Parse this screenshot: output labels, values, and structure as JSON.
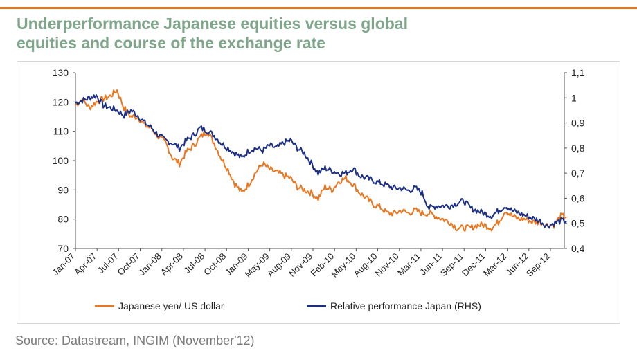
{
  "header": {
    "title_line1": "Underperformance Japanese equities versus global",
    "title_line2": "equities and course of the exchange rate",
    "accent_color": "#e87722",
    "title_color": "#7fa68a"
  },
  "footer": {
    "source": "Source: Datastream, INGIM (November'12)"
  },
  "chart_data": {
    "type": "line",
    "title": "",
    "x_tick_labels": [
      "Jan-07",
      "Apr-07",
      "Jul-07",
      "Oct-07",
      "Jan-08",
      "Apr-08",
      "Jul-08",
      "Oct-08",
      "Jan-09",
      "May-09",
      "Aug-09",
      "Nov-09",
      "Feb-10",
      "May-10",
      "Aug-10",
      "Nov-10",
      "Mar-11",
      "Jun-11",
      "Sep-11",
      "Dec-11",
      "Mar-12",
      "Jun-12",
      "Sep-12"
    ],
    "y_left": {
      "range": [
        70,
        130
      ],
      "ticks": [
        "130",
        "120",
        "110",
        "100",
        "90",
        "80",
        "70"
      ]
    },
    "y_right": {
      "range": [
        0.4,
        1.1
      ],
      "ticks": [
        "1,1",
        "1",
        "0,9",
        "0,8",
        "0,7",
        "0,6",
        "0,5",
        "0,4"
      ]
    },
    "legend_position": "bottom",
    "grid": false,
    "series": [
      {
        "name": "Japanese yen/ US dollar",
        "axis": "left",
        "color": "#e87722",
        "x": [
          "2007-01",
          "2007-02",
          "2007-03",
          "2007-04",
          "2007-05",
          "2007-06",
          "2007-07",
          "2007-08",
          "2007-09",
          "2007-10",
          "2007-11",
          "2007-12",
          "2008-01",
          "2008-02",
          "2008-03",
          "2008-04",
          "2008-05",
          "2008-06",
          "2008-07",
          "2008-08",
          "2008-09",
          "2008-10",
          "2008-11",
          "2008-12",
          "2009-01",
          "2009-02",
          "2009-03",
          "2009-04",
          "2009-05",
          "2009-06",
          "2009-07",
          "2009-08",
          "2009-09",
          "2009-10",
          "2009-11",
          "2009-12",
          "2010-01",
          "2010-02",
          "2010-03",
          "2010-04",
          "2010-05",
          "2010-06",
          "2010-07",
          "2010-08",
          "2010-09",
          "2010-10",
          "2010-11",
          "2010-12",
          "2011-01",
          "2011-02",
          "2011-03",
          "2011-04",
          "2011-05",
          "2011-06",
          "2011-07",
          "2011-08",
          "2011-09",
          "2011-10",
          "2011-11",
          "2011-12",
          "2012-01",
          "2012-02",
          "2012-03",
          "2012-04",
          "2012-05",
          "2012-06",
          "2012-07",
          "2012-08",
          "2012-09",
          "2012-10",
          "2012-11"
        ],
        "values": [
          119,
          121,
          118,
          120,
          121,
          122,
          124,
          118,
          115,
          115,
          112,
          111,
          108,
          106,
          101,
          99,
          103,
          105,
          108,
          110,
          106,
          101,
          97,
          92,
          89,
          92,
          96,
          99,
          97,
          96,
          95,
          94,
          91,
          90,
          89,
          87,
          91,
          90,
          93,
          94,
          92,
          89,
          87,
          85,
          84,
          82,
          82,
          83,
          82,
          83,
          82,
          82,
          81,
          80,
          79,
          77,
          77,
          77,
          78,
          78,
          77,
          79,
          83,
          81,
          80,
          80,
          79,
          79,
          78,
          78,
          81
        ]
      },
      {
        "name": "Relative performance Japan (RHS)",
        "axis": "right",
        "color": "#1c2f85",
        "x": [
          "2007-01",
          "2007-02",
          "2007-03",
          "2007-04",
          "2007-05",
          "2007-06",
          "2007-07",
          "2007-08",
          "2007-09",
          "2007-10",
          "2007-11",
          "2007-12",
          "2008-01",
          "2008-02",
          "2008-03",
          "2008-04",
          "2008-05",
          "2008-06",
          "2008-07",
          "2008-08",
          "2008-09",
          "2008-10",
          "2008-11",
          "2008-12",
          "2009-01",
          "2009-02",
          "2009-03",
          "2009-04",
          "2009-05",
          "2009-06",
          "2009-07",
          "2009-08",
          "2009-09",
          "2009-10",
          "2009-11",
          "2009-12",
          "2010-01",
          "2010-02",
          "2010-03",
          "2010-04",
          "2010-05",
          "2010-06",
          "2010-07",
          "2010-08",
          "2010-09",
          "2010-10",
          "2010-11",
          "2010-12",
          "2011-01",
          "2011-02",
          "2011-03",
          "2011-04",
          "2011-05",
          "2011-06",
          "2011-07",
          "2011-08",
          "2011-09",
          "2011-10",
          "2011-11",
          "2011-12",
          "2012-01",
          "2012-02",
          "2012-03",
          "2012-04",
          "2012-05",
          "2012-06",
          "2012-07",
          "2012-08",
          "2012-09",
          "2012-10",
          "2012-11"
        ],
        "values": [
          0.98,
          0.99,
          1.0,
          1.01,
          0.97,
          0.96,
          0.95,
          0.93,
          0.95,
          0.93,
          0.9,
          0.88,
          0.85,
          0.83,
          0.82,
          0.8,
          0.83,
          0.85,
          0.88,
          0.87,
          0.85,
          0.82,
          0.8,
          0.78,
          0.76,
          0.79,
          0.8,
          0.79,
          0.81,
          0.8,
          0.82,
          0.83,
          0.8,
          0.78,
          0.74,
          0.7,
          0.72,
          0.71,
          0.7,
          0.7,
          0.72,
          0.69,
          0.68,
          0.67,
          0.66,
          0.65,
          0.64,
          0.64,
          0.63,
          0.64,
          0.62,
          0.56,
          0.57,
          0.57,
          0.57,
          0.58,
          0.59,
          0.56,
          0.55,
          0.54,
          0.53,
          0.55,
          0.57,
          0.55,
          0.54,
          0.53,
          0.52,
          0.51,
          0.49,
          0.5,
          0.51
        ]
      }
    ]
  }
}
